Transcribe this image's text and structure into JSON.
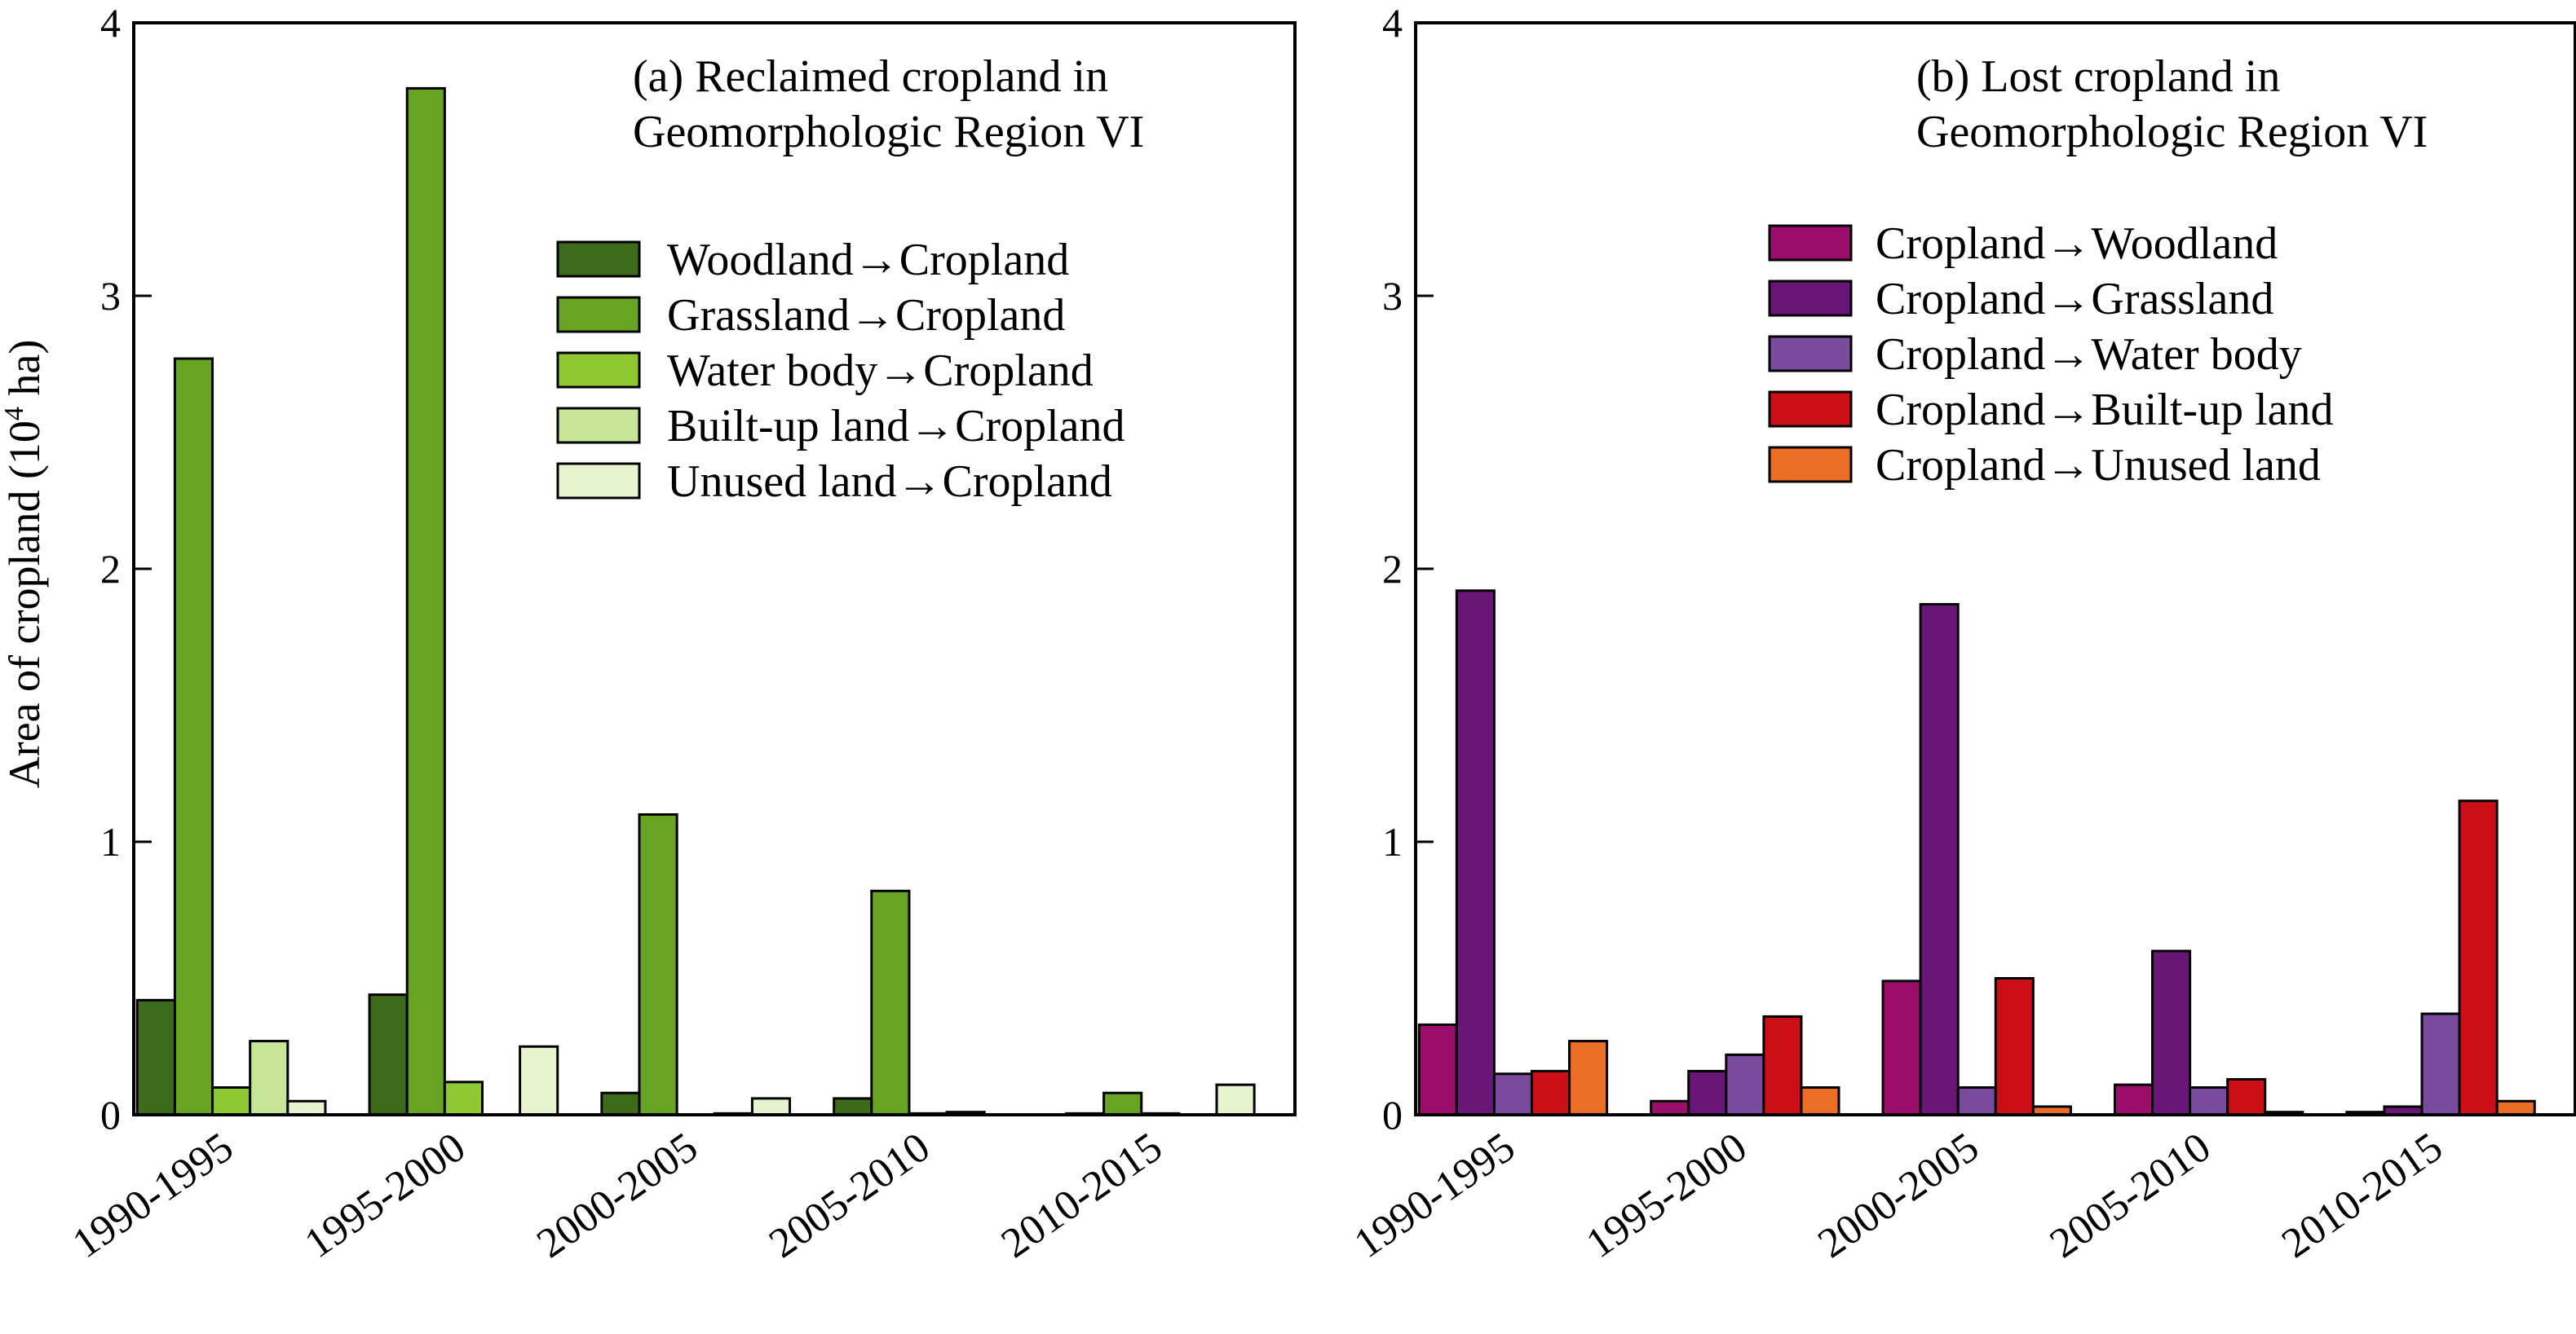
{
  "ylabel_main": "Area of cropland (10",
  "ylabel_sup": "4",
  "ylabel_unit": " ha)",
  "chart_data": [
    {
      "type": "bar",
      "title_line1": "(a) Reclaimed cropland in",
      "title_line2": "Geomorphologic Region VI",
      "categories": [
        "1990-1995",
        "1995-2000",
        "2000-2005",
        "2005-2010",
        "2010-2015"
      ],
      "ylim": [
        0,
        4
      ],
      "yticks": [
        "0",
        "1",
        "2",
        "3",
        "4"
      ],
      "legend_position": "upper-right",
      "grid": false,
      "series": [
        {
          "name": "Woodland→Cropland",
          "color": "#3d6b1b",
          "values": [
            0.42,
            0.44,
            0.08,
            0.06,
            0.005
          ]
        },
        {
          "name": "Grassland→Cropland",
          "color": "#66a421",
          "values": [
            2.77,
            3.76,
            1.1,
            0.82,
            0.08
          ]
        },
        {
          "name": "Water body→Cropland",
          "color": "#8ec832",
          "values": [
            0.1,
            0.12,
            0.0,
            0.005,
            0.005
          ]
        },
        {
          "name": "Built-up land→Cropland",
          "color": "#c7e596",
          "values": [
            0.27,
            0.0,
            0.005,
            0.01,
            0.0
          ]
        },
        {
          "name": "Unused land→Cropland",
          "color": "#e6f3cf",
          "values": [
            0.05,
            0.25,
            0.06,
            0.0,
            0.11
          ]
        }
      ]
    },
    {
      "type": "bar",
      "title_line1": "(b) Lost cropland in",
      "title_line2": "Geomorphologic Region VI",
      "categories": [
        "1990-1995",
        "1995-2000",
        "2000-2005",
        "2005-2010",
        "2010-2015"
      ],
      "ylim": [
        0,
        4
      ],
      "yticks": [
        "0",
        "1",
        "2",
        "3",
        "4"
      ],
      "legend_position": "upper-right",
      "grid": false,
      "series": [
        {
          "name": "Cropland→Woodland",
          "color": "#9b0d6b",
          "values": [
            0.33,
            0.05,
            0.49,
            0.11,
            0.01
          ]
        },
        {
          "name": "Cropland→Grassland",
          "color": "#6a1679",
          "values": [
            1.92,
            0.16,
            1.87,
            0.6,
            0.03
          ]
        },
        {
          "name": "Cropland→Water body",
          "color": "#7a4a9e",
          "values": [
            0.15,
            0.22,
            0.1,
            0.1,
            0.37
          ]
        },
        {
          "name": "Cropland→Built-up land",
          "color": "#cc0e16",
          "values": [
            0.16,
            0.36,
            0.5,
            0.13,
            1.15
          ]
        },
        {
          "name": "Cropland→Unused land",
          "color": "#ec6d24",
          "values": [
            0.27,
            0.1,
            0.03,
            0.01,
            0.05
          ]
        }
      ]
    }
  ]
}
